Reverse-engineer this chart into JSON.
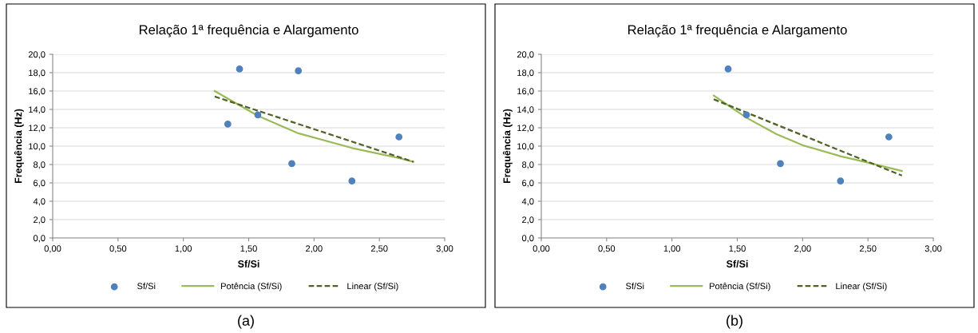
{
  "chart_data": [
    {
      "type": "scatter",
      "title": "Relação 1ª frequência e Alargamento",
      "xlabel": "Sf/Si",
      "ylabel": "Frequência (Hz)",
      "series": [
        {
          "name": "Sf/Si",
          "color": "#4f81bd",
          "marker": "circle",
          "x": [
            1.34,
            1.43,
            1.88,
            1.57,
            1.83,
            2.29,
            2.65
          ],
          "values": [
            12.4,
            18.4,
            18.2,
            13.4,
            8.1,
            6.2,
            11.0
          ]
        },
        {
          "name": "Potência (Sf/Si)",
          "type": "line",
          "color": "#9bbb59",
          "line_style": "solid",
          "x": [
            1.24,
            1.57,
            1.88,
            2.29,
            2.65,
            2.76
          ],
          "values": [
            16.0,
            13.3,
            11.4,
            9.8,
            8.7,
            8.3
          ]
        },
        {
          "name": "Linear (Sf/Si)",
          "type": "line",
          "color": "#4f6228",
          "line_style": "dashed",
          "x": [
            1.24,
            2.76
          ],
          "values": [
            15.4,
            8.3
          ]
        }
      ],
      "xlim": [
        0,
        3
      ],
      "ylim": [
        0,
        20
      ],
      "xticks": [
        {
          "value": 0,
          "label": "0,00"
        },
        {
          "value": 0.5,
          "label": "0,50"
        },
        {
          "value": 1,
          "label": "1,00"
        },
        {
          "value": 1.5,
          "label": "1,50"
        },
        {
          "value": 2,
          "label": "2,00"
        },
        {
          "value": 2.5,
          "label": "2,50"
        },
        {
          "value": 3,
          "label": "3,00"
        }
      ],
      "yticks": [
        {
          "value": 0,
          "label": "0,0"
        },
        {
          "value": 2,
          "label": "2,0"
        },
        {
          "value": 4,
          "label": "4,0"
        },
        {
          "value": 6,
          "label": "6,0"
        },
        {
          "value": 8,
          "label": "8,0"
        },
        {
          "value": 10,
          "label": "10,0"
        },
        {
          "value": 12,
          "label": "12,0"
        },
        {
          "value": 14,
          "label": "14,0"
        },
        {
          "value": 16,
          "label": "16,0"
        },
        {
          "value": 18,
          "label": "18,0"
        },
        {
          "value": 20,
          "label": "20,0"
        }
      ],
      "grid": "y",
      "legend": "bottom",
      "annotations": [
        "(a)"
      ]
    },
    {
      "type": "scatter",
      "title": "Relação 1ª frequência e Alargamento",
      "xlabel": "Sf/Si",
      "ylabel": "Frequência (Hz)",
      "series": [
        {
          "name": "Sf/Si",
          "color": "#4f81bd",
          "marker": "circle",
          "x": [
            1.43,
            1.57,
            1.83,
            2.29,
            2.66
          ],
          "values": [
            18.4,
            13.4,
            8.1,
            6.2,
            11.0
          ]
        },
        {
          "name": "Potência (Sf/Si)",
          "type": "line",
          "color": "#9bbb59",
          "line_style": "solid",
          "x": [
            1.32,
            1.57,
            1.8,
            2.0,
            2.29,
            2.5,
            2.76
          ],
          "values": [
            15.5,
            13.1,
            11.3,
            10.1,
            8.9,
            8.2,
            7.3
          ]
        },
        {
          "name": "Linear (Sf/Si)",
          "type": "line",
          "color": "#4f6228",
          "line_style": "dashed",
          "x": [
            1.32,
            2.76
          ],
          "values": [
            15.1,
            6.8
          ]
        }
      ],
      "xlim": [
        0,
        3
      ],
      "ylim": [
        0,
        20
      ],
      "xticks": [
        {
          "value": 0,
          "label": "0,00"
        },
        {
          "value": 0.5,
          "label": "0,50"
        },
        {
          "value": 1,
          "label": "1,00"
        },
        {
          "value": 1.5,
          "label": "1,50"
        },
        {
          "value": 2,
          "label": "2,00"
        },
        {
          "value": 2.5,
          "label": "2,50"
        },
        {
          "value": 3,
          "label": "3,00"
        }
      ],
      "yticks": [
        {
          "value": 0,
          "label": "0,0"
        },
        {
          "value": 2,
          "label": "2,0"
        },
        {
          "value": 4,
          "label": "4,0"
        },
        {
          "value": 6,
          "label": "6,0"
        },
        {
          "value": 8,
          "label": "8,0"
        },
        {
          "value": 10,
          "label": "10,0"
        },
        {
          "value": 12,
          "label": "12,0"
        },
        {
          "value": 14,
          "label": "14,0"
        },
        {
          "value": 16,
          "label": "16,0"
        },
        {
          "value": 18,
          "label": "18,0"
        },
        {
          "value": 20,
          "label": "20,0"
        }
      ],
      "grid": "y",
      "legend": "bottom",
      "annotations": [
        "(b)"
      ]
    }
  ]
}
